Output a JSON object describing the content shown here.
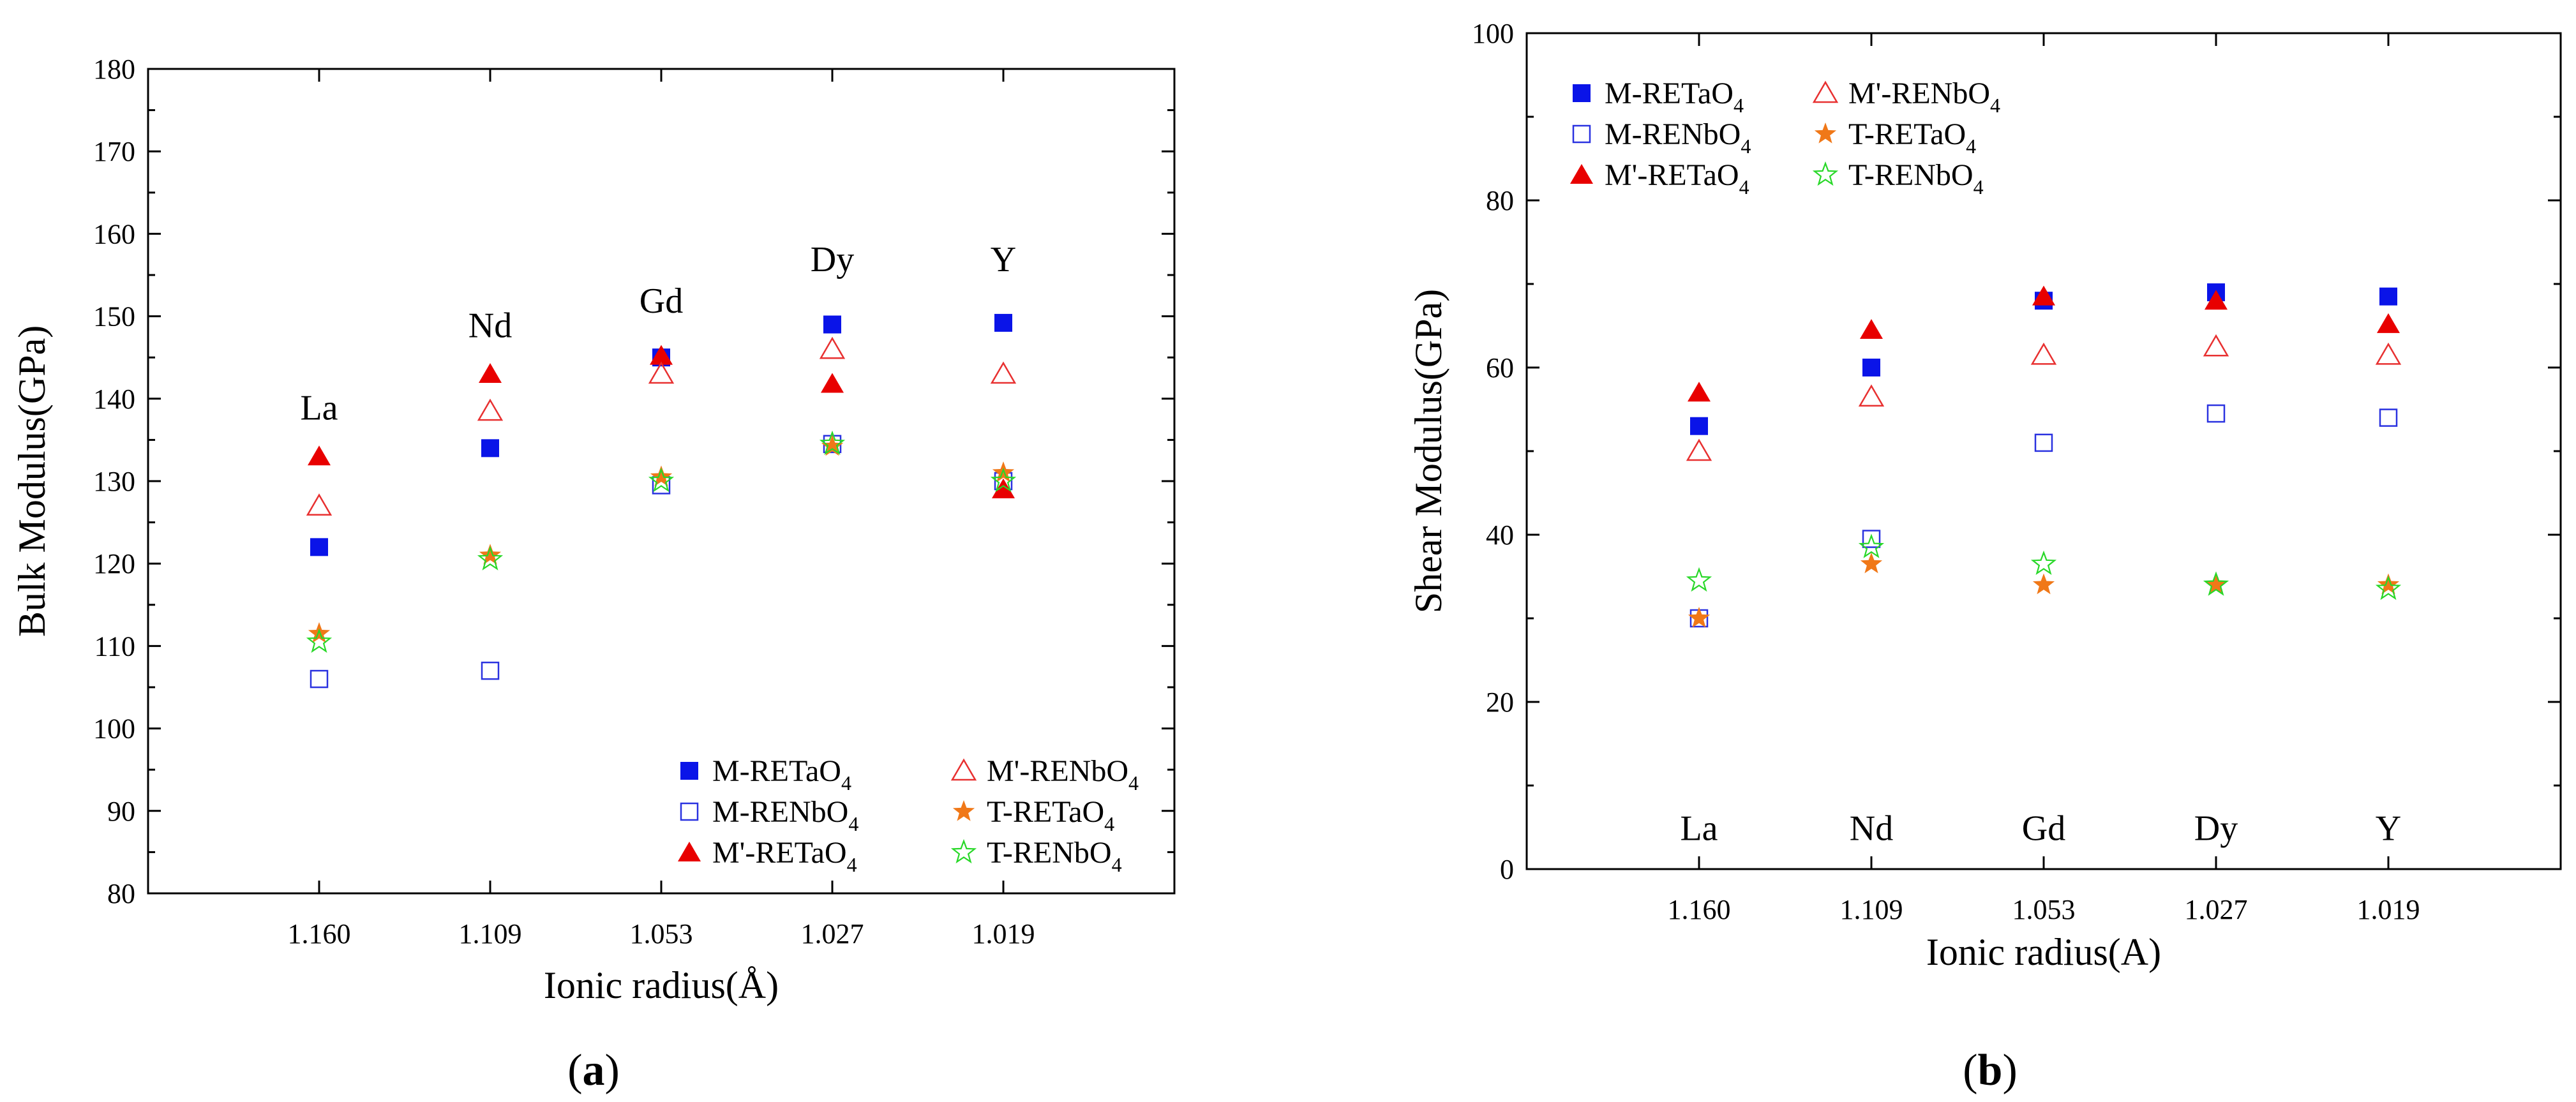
{
  "colors": {
    "M_RETaO4": "#0a14e8",
    "M_RENbO4": "#2a32e0",
    "Mp_RETaO4": "#e80000",
    "Mp_RENbO4": "#e83030",
    "T_RETaO4": "#f07818",
    "T_RENbO4": "#28d828"
  },
  "chart_data": [
    {
      "type": "scatter",
      "panel_label": "(a)",
      "panel_letter": "a",
      "xlabel": "Ionic radius(Å)",
      "ylabel": "Bulk Modulus(GPa)",
      "ylim": [
        80,
        180
      ],
      "yticks": [
        80,
        90,
        100,
        110,
        120,
        130,
        140,
        150,
        160,
        170,
        180
      ],
      "categories": [
        "1.160",
        "1.109",
        "1.053",
        "1.027",
        "1.019"
      ],
      "elements": [
        {
          "label": "La",
          "y": 139
        },
        {
          "label": "Nd",
          "y": 149
        },
        {
          "label": "Gd",
          "y": 152
        },
        {
          "label": "Dy",
          "y": 157
        },
        {
          "label": "Y",
          "y": 157
        }
      ],
      "legend_position": "bottom-right",
      "legend": [
        {
          "key": "M_RETaO4",
          "prefix": "M-RETaO",
          "sub": "4",
          "marker": "square-filled"
        },
        {
          "key": "Mp_RENbO4",
          "prefix": "M'-RENbO",
          "sub": "4",
          "marker": "triangle-open"
        },
        {
          "key": "M_RENbO4",
          "prefix": "M-RENbO",
          "sub": "4",
          "marker": "square-open"
        },
        {
          "key": "T_RETaO4",
          "prefix": "T-RETaO",
          "sub": "4",
          "marker": "star-filled"
        },
        {
          "key": "Mp_RETaO4",
          "prefix": "M'-RETaO",
          "sub": "4",
          "marker": "triangle-filled"
        },
        {
          "key": "T_RENbO4",
          "prefix": "T-RENbO",
          "sub": "4",
          "marker": "star-open"
        }
      ],
      "series": [
        {
          "key": "M_RETaO4",
          "name": "M-RETaO4",
          "marker": "square-filled",
          "values": [
            122,
            134,
            145,
            149,
            149.2
          ]
        },
        {
          "key": "M_RENbO4",
          "name": "M-RENbO4",
          "marker": "square-open",
          "values": [
            106,
            107,
            129.5,
            134.5,
            130
          ]
        },
        {
          "key": "Mp_RETaO4",
          "name": "M'-RETaO4",
          "marker": "triangle-filled",
          "values": [
            133,
            143,
            145.2,
            141.8,
            129
          ]
        },
        {
          "key": "Mp_RENbO4",
          "name": "M'-RENbO4",
          "marker": "triangle-open",
          "values": [
            127,
            138.5,
            143,
            146,
            143
          ]
        },
        {
          "key": "T_RETaO4",
          "name": "T-RETaO4",
          "marker": "star-filled",
          "values": [
            111.5,
            121,
            130.5,
            134.2,
            131
          ]
        },
        {
          "key": "T_RENbO4",
          "name": "T-RENbO4",
          "marker": "star-open",
          "values": [
            110.5,
            120.5,
            130,
            134.5,
            130
          ]
        }
      ]
    },
    {
      "type": "scatter",
      "panel_label": "(b)",
      "panel_letter": "b",
      "xlabel": "Ionic radius(A)",
      "ylabel": "Shear Modulus(GPa)",
      "ylim": [
        0,
        100
      ],
      "yticks": [
        0,
        20,
        40,
        60,
        80,
        100
      ],
      "categories": [
        "1.160",
        "1.109",
        "1.053",
        "1.027",
        "1.019"
      ],
      "elements": [
        {
          "label": "La",
          "y": 5
        },
        {
          "label": "Nd",
          "y": 5
        },
        {
          "label": "Gd",
          "y": 5
        },
        {
          "label": "Dy",
          "y": 5
        },
        {
          "label": "Y",
          "y": 5
        }
      ],
      "legend_position": "top-left",
      "legend": [
        {
          "key": "M_RETaO4",
          "prefix": "M-RETaO",
          "sub": "4",
          "marker": "square-filled"
        },
        {
          "key": "Mp_RENbO4",
          "prefix": "M'-RENbO",
          "sub": "4",
          "marker": "triangle-open"
        },
        {
          "key": "M_RENbO4",
          "prefix": "M-RENbO",
          "sub": "4",
          "marker": "square-open"
        },
        {
          "key": "T_RETaO4",
          "prefix": "T-RETaO",
          "sub": "4",
          "marker": "star-filled"
        },
        {
          "key": "Mp_RETaO4",
          "prefix": "M'-RETaO",
          "sub": "4",
          "marker": "triangle-filled"
        },
        {
          "key": "T_RENbO4",
          "prefix": "T-RENbO",
          "sub": "4",
          "marker": "star-open"
        }
      ],
      "series": [
        {
          "key": "M_RETaO4",
          "name": "M-RETaO4",
          "marker": "square-filled",
          "values": [
            53,
            60,
            68,
            69,
            68.5
          ]
        },
        {
          "key": "M_RENbO4",
          "name": "M-RENbO4",
          "marker": "square-open",
          "values": [
            30,
            39.5,
            51,
            54.5,
            54
          ]
        },
        {
          "key": "Mp_RETaO4",
          "name": "M'-RETaO4",
          "marker": "triangle-filled",
          "values": [
            57,
            64.5,
            68.5,
            68,
            65.2
          ]
        },
        {
          "key": "Mp_RENbO4",
          "name": "M'-RENbO4",
          "marker": "triangle-open",
          "values": [
            50,
            56.5,
            61.5,
            62.5,
            61.5
          ]
        },
        {
          "key": "T_RETaO4",
          "name": "T-RETaO4",
          "marker": "star-filled",
          "values": [
            30,
            36.5,
            34,
            34,
            34
          ]
        },
        {
          "key": "T_RENbO4",
          "name": "T-RENbO4",
          "marker": "star-open",
          "values": [
            34.5,
            38.5,
            36.5,
            34,
            33.5
          ]
        }
      ]
    }
  ]
}
